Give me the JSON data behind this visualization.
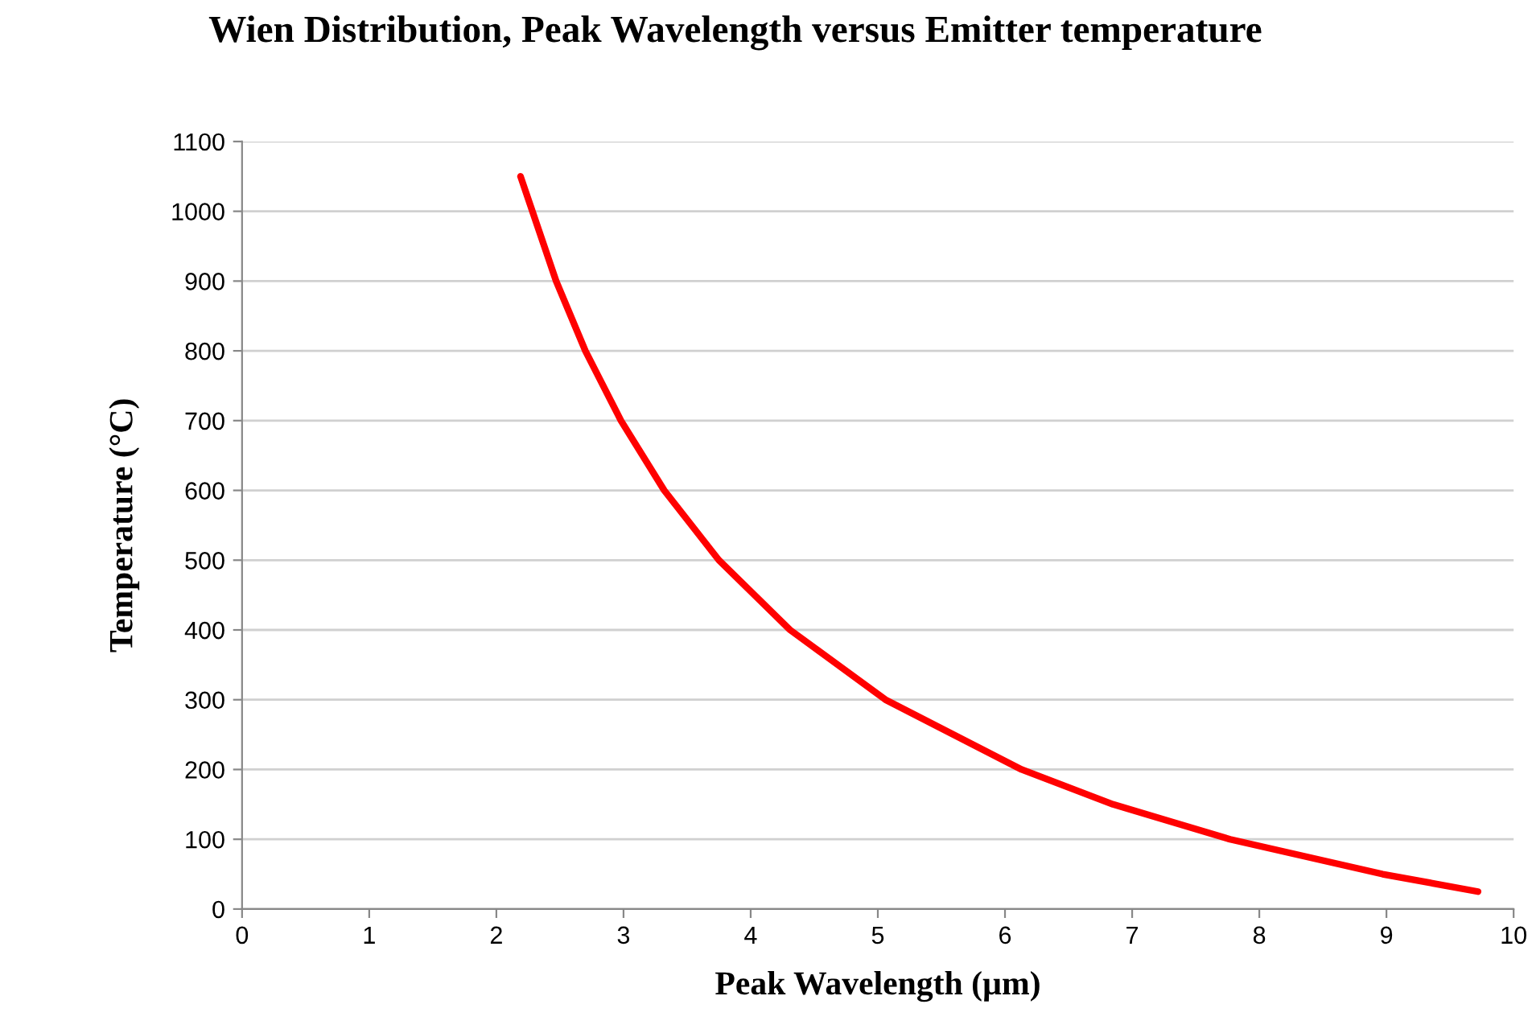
{
  "chart_data": {
    "type": "line",
    "title": "Wien Distribution, Peak Wavelength versus Emitter temperature",
    "xlabel": "Peak Wavelength (µm)",
    "ylabel": "Temperature (°C)",
    "series": [
      {
        "color": "#ff0000",
        "x": [
          2.19,
          2.47,
          2.7,
          2.98,
          3.32,
          3.75,
          4.31,
          5.06,
          6.13,
          6.85,
          7.77,
          8.97,
          9.72
        ],
        "values": [
          1050,
          900,
          800,
          700,
          600,
          500,
          400,
          300,
          200,
          150,
          100,
          50,
          25
        ]
      }
    ],
    "xlim": [
      0,
      10
    ],
    "xticks": [
      0,
      1,
      2,
      3,
      4,
      5,
      6,
      7,
      8,
      9,
      10
    ],
    "ylim": [
      0,
      1100
    ],
    "yticks": [
      0,
      100,
      200,
      300,
      400,
      500,
      600,
      700,
      800,
      900,
      1000,
      1100
    ],
    "grid": "y",
    "legend": false,
    "marker": "none",
    "line_style": "solid"
  }
}
